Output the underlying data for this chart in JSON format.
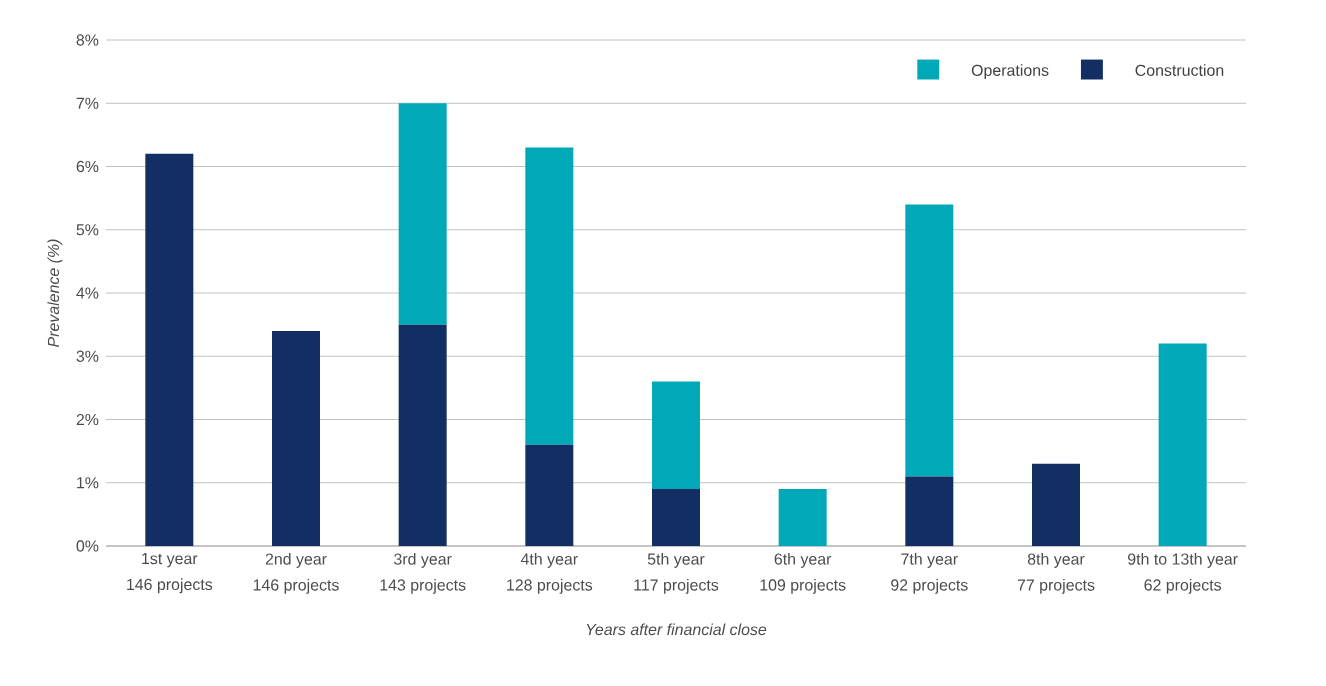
{
  "chart_data": {
    "type": "bar",
    "stacked": true,
    "categories": [
      "1st year\n146 projects",
      "2nd year\n146 projects",
      "3rd year\n143 projects",
      "4th year\n128 projects",
      "5th year\n117 projects",
      "6th year\n109 projects",
      "7th year\n92 projects",
      "8th year\n77 projects",
      "9th to 13th year\n62 projects"
    ],
    "series": [
      {
        "name": "Construction",
        "color": "#122e63",
        "values": [
          6.2,
          3.4,
          3.5,
          1.6,
          0.9,
          0,
          1.1,
          1.3,
          0
        ]
      },
      {
        "name": "Operations",
        "color": "#00a8b8",
        "values": [
          0,
          0,
          3.5,
          4.7,
          1.7,
          0.9,
          4.3,
          0,
          3.2
        ]
      }
    ],
    "ylim": [
      0,
      8
    ],
    "yticks": [
      {
        "value": 0,
        "label": "0%"
      },
      {
        "value": 1,
        "label": "1%"
      },
      {
        "value": 2,
        "label": "2%"
      },
      {
        "value": 3,
        "label": "3%"
      },
      {
        "value": 4,
        "label": "4%"
      },
      {
        "value": 5,
        "label": "5%"
      },
      {
        "value": 6,
        "label": "6%"
      },
      {
        "value": 7,
        "label": "7%"
      },
      {
        "value": 8,
        "label": "8%"
      }
    ],
    "ylabel": "Prevalence (%)",
    "xlabel": "Years after financial close",
    "grid": "y",
    "legend": "top right"
  }
}
